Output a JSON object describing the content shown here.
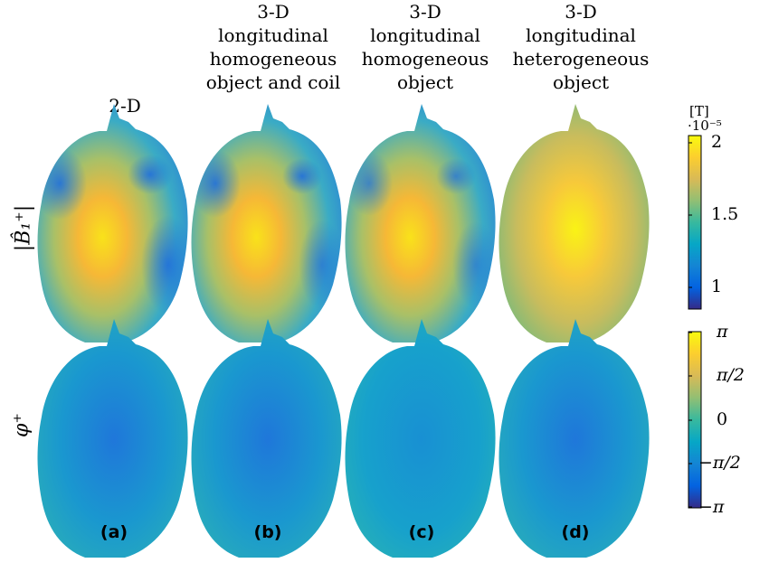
{
  "columns": [
    {
      "lines": [
        "2-D"
      ],
      "panel": "(a)"
    },
    {
      "lines": [
        "3-D",
        "longitudinal",
        "homogeneous",
        "object and coil"
      ],
      "panel": "(b)"
    },
    {
      "lines": [
        "3-D",
        "longitudinal",
        "homogeneous",
        "object"
      ],
      "panel": "(c)"
    },
    {
      "lines": [
        "3-D",
        "longitudinal",
        "heterogeneous",
        "object"
      ],
      "panel": "(d)"
    }
  ],
  "rows": {
    "magnitude_label": "|B̂₁⁺|",
    "phase_label": "φ⁺"
  },
  "colorbar_magnitude": {
    "unit": "[T]",
    "scale": "·10⁻⁵",
    "ticks": [
      "2",
      "1.5",
      "1"
    ],
    "range": [
      0.8,
      2.0
    ]
  },
  "colorbar_phase": {
    "ticks": [
      "π",
      "π/2",
      "0",
      "−π/2",
      "−π"
    ],
    "range": [
      -3.1416,
      3.1416
    ]
  },
  "colormap": [
    "#352a87",
    "#0363e1",
    "#1485d4",
    "#06a7c6",
    "#38b99e",
    "#92bf73",
    "#d9ba56",
    "#fcce2e",
    "#f9fb0e"
  ]
}
